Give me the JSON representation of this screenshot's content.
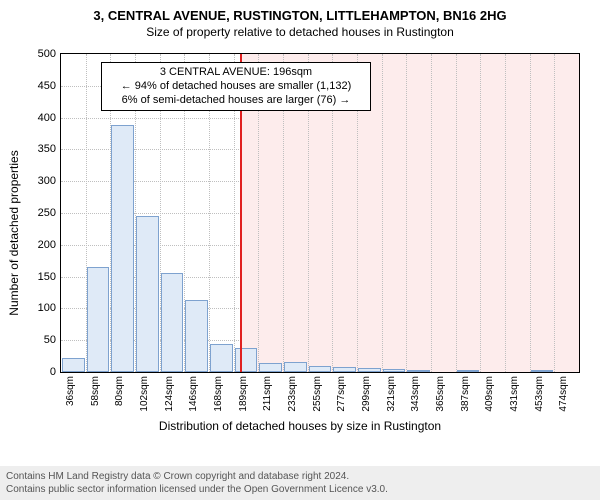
{
  "title": "3, CENTRAL AVENUE, RUSTINGTON, LITTLEHAMPTON, BN16 2HG",
  "subtitle": "Size of property relative to detached houses in Rustington",
  "yaxis_label": "Number of detached properties",
  "xaxis_label": "Distribution of detached houses by size in Rustington",
  "footer_line1": "Contains HM Land Registry data © Crown copyright and database right 2024.",
  "footer_line2": "Contains public sector information licensed under the Open Government Licence v3.0.",
  "callout": {
    "line1": "3 CENTRAL AVENUE: 196sqm",
    "line2": "← 94% of detached houses are smaller (1,132)",
    "line3": "6% of semi-detached houses are larger (76) →"
  },
  "chart": {
    "type": "histogram-with-reference",
    "background_color": "#ffffff",
    "plot_border_color": "#000000",
    "grid_color": "#bfbfbf",
    "bar_fill": "#dfeaf7",
    "bar_stroke": "#7ea2cf",
    "shade_fill": "#fdecec",
    "shade_stroke_right": "#e47070",
    "ref_line_color": "#e02020",
    "ylim": [
      0,
      500
    ],
    "ytick_step": 50,
    "bin_width_sqm": 22,
    "ref_value_sqm": 196,
    "bins": [
      {
        "label": "36sqm",
        "start": 36,
        "count": 22
      },
      {
        "label": "58sqm",
        "start": 58,
        "count": 165
      },
      {
        "label": "80sqm",
        "start": 80,
        "count": 388
      },
      {
        "label": "102sqm",
        "start": 102,
        "count": 245
      },
      {
        "label": "124sqm",
        "start": 124,
        "count": 155
      },
      {
        "label": "146sqm",
        "start": 146,
        "count": 113
      },
      {
        "label": "168sqm",
        "start": 168,
        "count": 44
      },
      {
        "label": "189sqm",
        "start": 189,
        "count": 38
      },
      {
        "label": "211sqm",
        "start": 211,
        "count": 14
      },
      {
        "label": "233sqm",
        "start": 233,
        "count": 15
      },
      {
        "label": "255sqm",
        "start": 255,
        "count": 10
      },
      {
        "label": "277sqm",
        "start": 277,
        "count": 8
      },
      {
        "label": "299sqm",
        "start": 299,
        "count": 7
      },
      {
        "label": "321sqm",
        "start": 321,
        "count": 5
      },
      {
        "label": "343sqm",
        "start": 343,
        "count": 2
      },
      {
        "label": "365sqm",
        "start": 365,
        "count": 0
      },
      {
        "label": "387sqm",
        "start": 387,
        "count": 3
      },
      {
        "label": "409sqm",
        "start": 409,
        "count": 0
      },
      {
        "label": "431sqm",
        "start": 431,
        "count": 0
      },
      {
        "label": "453sqm",
        "start": 453,
        "count": 2
      },
      {
        "label": "474sqm",
        "start": 474,
        "count": 0
      }
    ],
    "tick_font_size": 11,
    "xtick_font_size": 10,
    "title_font_size": 13,
    "subtitle_font_size": 12,
    "label_font_size": 12,
    "callout_font_size": 11
  }
}
